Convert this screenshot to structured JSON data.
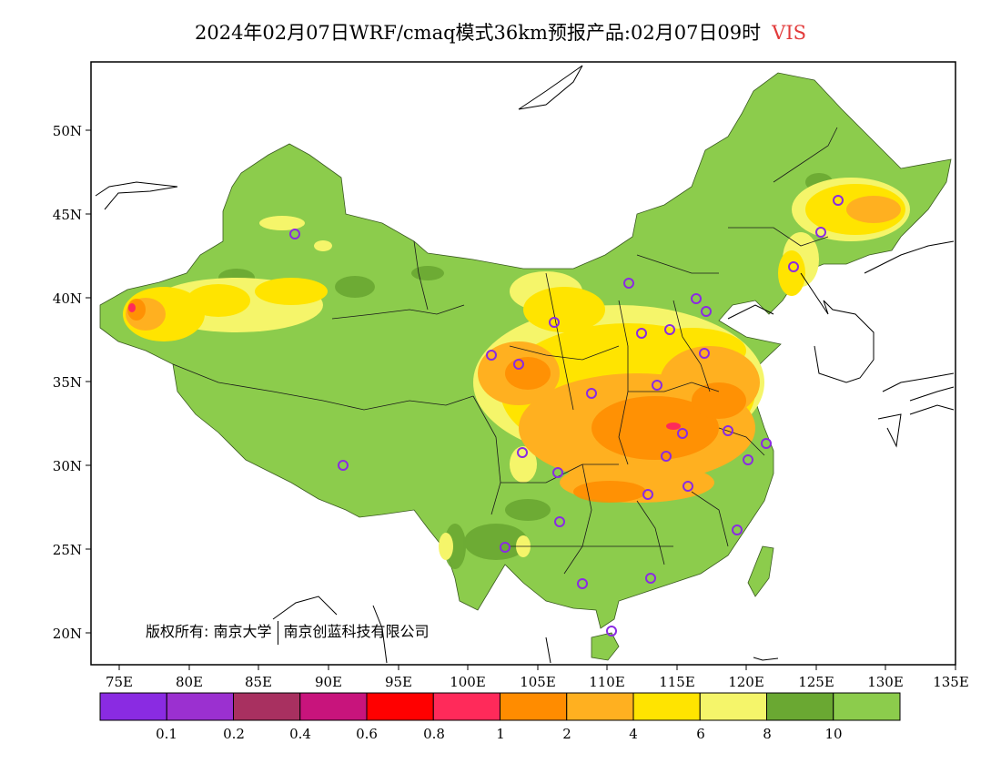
{
  "title": {
    "text": "2024年02月07日WRF/cmaq模式36km预报产品:02月07日09时",
    "variable": "VIS"
  },
  "axes": {
    "lat_labels": [
      "50N",
      "45N",
      "40N",
      "35N",
      "30N",
      "25N",
      "20N"
    ],
    "lon_labels": [
      "75E",
      "80E",
      "85E",
      "90E",
      "95E",
      "100E",
      "105E",
      "110E",
      "115E",
      "120E",
      "125E",
      "130E",
      "135E"
    ]
  },
  "copyright": {
    "prefix": "版权所有:",
    "org1": "南京大学",
    "org2": "南京创蓝科技有限公司"
  },
  "legend": {
    "colors": [
      "#8a2be2",
      "#9b30d0",
      "#a83060",
      "#c8147c",
      "#ff0000",
      "#ff2a5a",
      "#ff8c00",
      "#ffb020",
      "#ffe400",
      "#f5f56a",
      "#6aa832",
      "#8ccc4c"
    ],
    "labels": [
      "0.1",
      "0.2",
      "0.4",
      "0.6",
      "0.8",
      "1",
      "2",
      "4",
      "6",
      "8",
      "10"
    ]
  },
  "palette": {
    "land": "#8ccc4c",
    "dark_green": "#6aa832",
    "pale_yellow": "#f5f56a",
    "yellow": "#ffe400",
    "light_orange": "#ffb020",
    "orange": "#ff8c00",
    "marker": "#8a2be2"
  }
}
